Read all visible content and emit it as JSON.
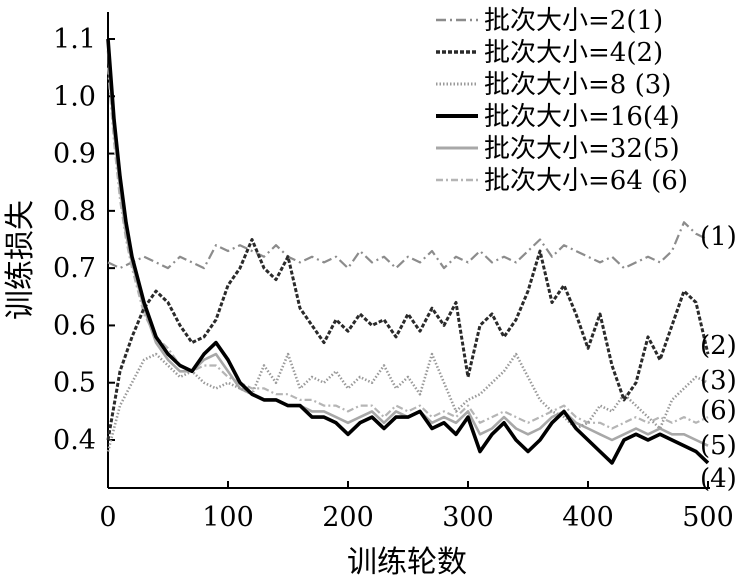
{
  "chart_data": {
    "type": "line",
    "title": "",
    "xlabel": "训练轮数",
    "ylabel": "训练损失",
    "xlim": [
      0,
      510
    ],
    "ylim": [
      0.33,
      1.15
    ],
    "x_ticks": [
      "0",
      "100",
      "200",
      "300",
      "400",
      "500"
    ],
    "y_ticks": [
      "0.4",
      "0.5",
      "0.6",
      "0.7",
      "0.8",
      "0.9",
      "1.0",
      "1.1"
    ],
    "grid": false,
    "legend_position": "top-right",
    "series": [
      {
        "name": "批次大小=2(1)",
        "end_label": "(1)",
        "color": "#8c8c8c",
        "style": "dash-dot",
        "x": [
          0,
          10,
          20,
          30,
          40,
          50,
          60,
          70,
          80,
          90,
          100,
          110,
          120,
          130,
          140,
          150,
          160,
          170,
          180,
          190,
          200,
          210,
          220,
          230,
          240,
          250,
          260,
          270,
          280,
          290,
          300,
          310,
          320,
          330,
          340,
          350,
          360,
          370,
          380,
          390,
          400,
          410,
          420,
          430,
          440,
          450,
          460,
          470,
          480,
          490,
          500
        ],
        "y": [
          0.71,
          0.7,
          0.71,
          0.72,
          0.71,
          0.7,
          0.72,
          0.71,
          0.7,
          0.74,
          0.73,
          0.74,
          0.73,
          0.72,
          0.74,
          0.72,
          0.71,
          0.72,
          0.71,
          0.72,
          0.7,
          0.73,
          0.71,
          0.72,
          0.7,
          0.72,
          0.71,
          0.73,
          0.7,
          0.72,
          0.71,
          0.73,
          0.71,
          0.72,
          0.71,
          0.73,
          0.75,
          0.72,
          0.74,
          0.73,
          0.72,
          0.71,
          0.72,
          0.7,
          0.71,
          0.72,
          0.71,
          0.73,
          0.78,
          0.76,
          0.75
        ]
      },
      {
        "name": "批次大小=4(2)",
        "end_label": "(2)",
        "color": "#2a2a2a",
        "style": "dashed",
        "x": [
          0,
          10,
          20,
          30,
          40,
          50,
          60,
          70,
          80,
          90,
          100,
          110,
          120,
          130,
          140,
          150,
          160,
          170,
          180,
          190,
          200,
          210,
          220,
          230,
          240,
          250,
          260,
          270,
          280,
          290,
          300,
          310,
          320,
          330,
          340,
          350,
          360,
          370,
          380,
          390,
          400,
          410,
          420,
          430,
          440,
          450,
          460,
          470,
          480,
          490,
          500
        ],
        "y": [
          0.4,
          0.52,
          0.58,
          0.63,
          0.66,
          0.64,
          0.6,
          0.57,
          0.58,
          0.61,
          0.67,
          0.7,
          0.75,
          0.7,
          0.68,
          0.72,
          0.63,
          0.6,
          0.57,
          0.61,
          0.59,
          0.62,
          0.6,
          0.61,
          0.58,
          0.62,
          0.59,
          0.63,
          0.6,
          0.64,
          0.51,
          0.6,
          0.62,
          0.58,
          0.61,
          0.66,
          0.73,
          0.64,
          0.67,
          0.62,
          0.56,
          0.62,
          0.53,
          0.47,
          0.5,
          0.58,
          0.54,
          0.6,
          0.66,
          0.64,
          0.55
        ]
      },
      {
        "name": "批次大小=8 (3)",
        "end_label": "(3)",
        "color": "#9a9a9a",
        "style": "dotted",
        "x": [
          0,
          10,
          20,
          30,
          40,
          50,
          60,
          70,
          80,
          90,
          100,
          110,
          120,
          130,
          140,
          150,
          160,
          170,
          180,
          190,
          200,
          210,
          220,
          230,
          240,
          250,
          260,
          270,
          280,
          290,
          300,
          310,
          320,
          330,
          340,
          350,
          360,
          370,
          380,
          390,
          400,
          410,
          420,
          430,
          440,
          450,
          460,
          470,
          480,
          490,
          500
        ],
        "y": [
          0.38,
          0.46,
          0.5,
          0.54,
          0.55,
          0.53,
          0.51,
          0.52,
          0.5,
          0.49,
          0.5,
          0.49,
          0.48,
          0.53,
          0.5,
          0.55,
          0.49,
          0.51,
          0.5,
          0.52,
          0.49,
          0.51,
          0.5,
          0.53,
          0.49,
          0.51,
          0.48,
          0.55,
          0.5,
          0.45,
          0.47,
          0.48,
          0.5,
          0.52,
          0.55,
          0.51,
          0.47,
          0.45,
          0.44,
          0.42,
          0.43,
          0.46,
          0.45,
          0.48,
          0.46,
          0.44,
          0.42,
          0.47,
          0.49,
          0.51,
          0.5
        ]
      },
      {
        "name": "批次大小=16(4)",
        "end_label": "(4)",
        "color": "#000000",
        "style": "solid-thick",
        "x": [
          0,
          5,
          10,
          15,
          20,
          25,
          30,
          40,
          50,
          60,
          70,
          80,
          90,
          100,
          110,
          120,
          130,
          140,
          150,
          160,
          170,
          180,
          190,
          200,
          210,
          220,
          230,
          240,
          250,
          260,
          270,
          280,
          290,
          300,
          310,
          320,
          330,
          340,
          350,
          360,
          370,
          380,
          390,
          400,
          410,
          420,
          430,
          440,
          450,
          460,
          470,
          480,
          490,
          500
        ],
        "y": [
          1.1,
          0.96,
          0.86,
          0.78,
          0.72,
          0.68,
          0.64,
          0.58,
          0.55,
          0.53,
          0.52,
          0.55,
          0.57,
          0.54,
          0.5,
          0.48,
          0.47,
          0.47,
          0.46,
          0.46,
          0.44,
          0.44,
          0.43,
          0.41,
          0.43,
          0.44,
          0.42,
          0.44,
          0.44,
          0.45,
          0.42,
          0.43,
          0.41,
          0.44,
          0.38,
          0.41,
          0.43,
          0.4,
          0.38,
          0.4,
          0.43,
          0.45,
          0.42,
          0.4,
          0.38,
          0.36,
          0.4,
          0.41,
          0.4,
          0.41,
          0.4,
          0.39,
          0.38,
          0.36
        ]
      },
      {
        "name": "批次大小=32(5)",
        "end_label": "(5)",
        "color": "#a8a8a8",
        "style": "solid",
        "x": [
          0,
          5,
          10,
          15,
          20,
          25,
          30,
          40,
          50,
          60,
          70,
          80,
          90,
          100,
          110,
          120,
          130,
          140,
          150,
          160,
          170,
          180,
          190,
          200,
          210,
          220,
          230,
          240,
          250,
          260,
          270,
          280,
          290,
          300,
          310,
          320,
          330,
          340,
          350,
          360,
          370,
          380,
          390,
          400,
          410,
          420,
          430,
          440,
          450,
          460,
          470,
          480,
          490,
          500
        ],
        "y": [
          1.08,
          0.94,
          0.84,
          0.76,
          0.71,
          0.67,
          0.63,
          0.57,
          0.54,
          0.52,
          0.52,
          0.54,
          0.55,
          0.52,
          0.49,
          0.48,
          0.47,
          0.47,
          0.46,
          0.46,
          0.45,
          0.45,
          0.44,
          0.43,
          0.44,
          0.45,
          0.43,
          0.45,
          0.44,
          0.45,
          0.43,
          0.44,
          0.43,
          0.45,
          0.41,
          0.42,
          0.44,
          0.42,
          0.41,
          0.42,
          0.44,
          0.45,
          0.43,
          0.42,
          0.41,
          0.4,
          0.41,
          0.42,
          0.41,
          0.42,
          0.41,
          0.41,
          0.4,
          0.39
        ]
      },
      {
        "name": "批次大小=64 (6)",
        "end_label": "(6)",
        "color": "#b5b5b5",
        "style": "dash-dot-light",
        "x": [
          0,
          5,
          10,
          15,
          20,
          25,
          30,
          40,
          50,
          60,
          70,
          80,
          90,
          100,
          110,
          120,
          130,
          140,
          150,
          160,
          170,
          180,
          190,
          200,
          210,
          220,
          230,
          240,
          250,
          260,
          270,
          280,
          290,
          300,
          310,
          320,
          330,
          340,
          350,
          360,
          370,
          380,
          390,
          400,
          410,
          420,
          430,
          440,
          450,
          460,
          470,
          480,
          490,
          500
        ],
        "y": [
          1.05,
          0.92,
          0.82,
          0.75,
          0.7,
          0.66,
          0.62,
          0.58,
          0.56,
          0.53,
          0.52,
          0.53,
          0.53,
          0.51,
          0.5,
          0.49,
          0.49,
          0.48,
          0.48,
          0.47,
          0.47,
          0.46,
          0.46,
          0.45,
          0.46,
          0.46,
          0.44,
          0.46,
          0.45,
          0.46,
          0.44,
          0.45,
          0.44,
          0.46,
          0.43,
          0.44,
          0.45,
          0.44,
          0.43,
          0.44,
          0.45,
          0.46,
          0.44,
          0.43,
          0.43,
          0.42,
          0.43,
          0.44,
          0.43,
          0.44,
          0.43,
          0.44,
          0.43,
          0.44
        ]
      }
    ]
  }
}
